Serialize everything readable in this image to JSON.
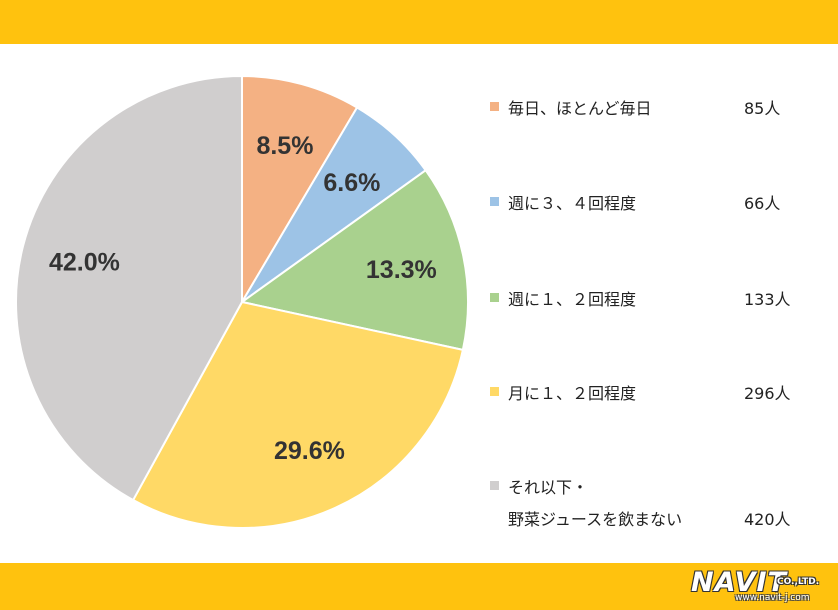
{
  "chart_data": {
    "type": "pie",
    "categories": [
      "毎日、ほとんど毎日",
      "週に３、４回程度",
      "週に１、２回程度",
      "月に１、２回程度",
      "それ以下・野菜ジュースを飲まない"
    ],
    "values": [
      8.5,
      6.6,
      13.3,
      29.6,
      42.0
    ],
    "labels": [
      "8.5%",
      "6.6%",
      "13.3%",
      "29.6%",
      "42.0%"
    ],
    "counts": [
      "85人",
      "66人",
      "133人",
      "296人",
      "420人"
    ],
    "colors": [
      "#F4B183",
      "#9DC3E6",
      "#A9D18E",
      "#FFD966",
      "#D0CECE"
    ],
    "legend": "right"
  },
  "legend": {
    "items": [
      {
        "label": "毎日、ほとんど毎日",
        "count": "85人"
      },
      {
        "label": "週に３、４回程度",
        "count": "66人"
      },
      {
        "label": "週に１、２回程度",
        "count": "133人"
      },
      {
        "label": "月に１、２回程度",
        "count": "296人"
      },
      {
        "label_line1": "それ以下・",
        "label_line2": "野菜ジュースを飲まない",
        "count": "420人"
      }
    ]
  },
  "logo": {
    "name": "NAVIT",
    "suffix": "CO.,LTD.",
    "url": "www.navit-j.com"
  },
  "colors": {
    "band": "#FFC20E"
  }
}
